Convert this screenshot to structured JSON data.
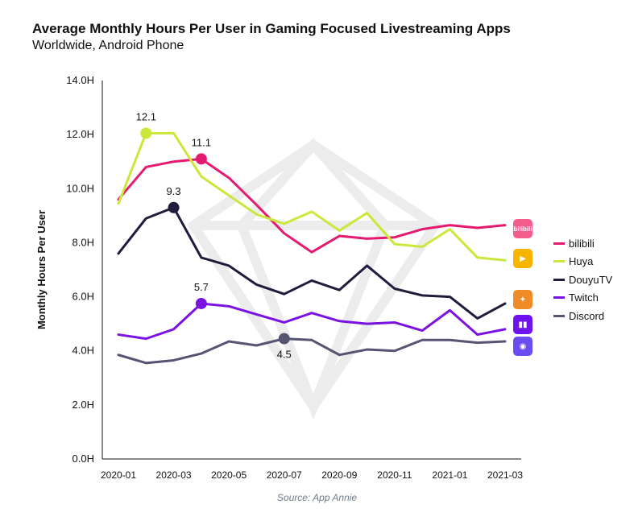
{
  "header": {
    "title": "Average Monthly Hours Per User in Gaming Focused Livestreaming Apps",
    "subtitle": "Worldwide, Android Phone"
  },
  "source": "Source: App Annie",
  "icons": {
    "bilibili": {
      "name": "bilibili-logo-icon",
      "color": "#f25d8e",
      "text": "bilibili"
    },
    "huya": {
      "name": "huya-logo-icon",
      "color": "#f7b500",
      "text": "▶"
    },
    "douyu": {
      "name": "douyu-logo-icon",
      "color": "#f08a25",
      "text": "✦"
    },
    "twitch": {
      "name": "twitch-logo-icon",
      "color": "#6f12f0",
      "text": "▮▮"
    },
    "discord": {
      "name": "discord-logo-icon",
      "color": "#6b4cf0",
      "text": "◉"
    }
  },
  "chart_data": {
    "type": "line",
    "title": "Average Monthly Hours Per User in Gaming Focused Livestreaming Apps",
    "subtitle": "Worldwide, Android Phone",
    "xlabel": "",
    "ylabel": "Monthly Hours Per User",
    "ylim": [
      0,
      14
    ],
    "yticks": [
      0,
      2,
      4,
      6,
      8,
      10,
      12,
      14
    ],
    "ytick_labels": [
      "0.0H",
      "2.0H",
      "4.0H",
      "6.0H",
      "8.0H",
      "10.0H",
      "12.0H",
      "14.0H"
    ],
    "x": [
      "2020-01",
      "2020-02",
      "2020-03",
      "2020-04",
      "2020-05",
      "2020-06",
      "2020-07",
      "2020-08",
      "2020-09",
      "2020-10",
      "2020-11",
      "2020-12",
      "2021-01",
      "2021-02",
      "2021-03"
    ],
    "xtick_labels": [
      "2020-01",
      "2020-03",
      "2020-05",
      "2020-07",
      "2020-09",
      "2020-11",
      "2021-01",
      "2021-03"
    ],
    "grid": false,
    "legend_position": "right",
    "series": [
      {
        "name": "bilibili",
        "color": "#e5196f",
        "values": [
          9.6,
          10.8,
          11.0,
          11.1,
          10.4,
          9.4,
          8.35,
          7.65,
          8.25,
          8.15,
          8.2,
          8.5,
          8.65,
          8.55,
          8.65
        ]
      },
      {
        "name": "Huya",
        "color": "#c9e83a",
        "values": [
          9.45,
          12.05,
          12.05,
          10.45,
          9.75,
          9.05,
          8.7,
          9.15,
          8.45,
          9.1,
          7.95,
          7.85,
          8.5,
          7.45,
          7.35
        ]
      },
      {
        "name": "DouyuTV",
        "color": "#1f1c3d",
        "values": [
          7.6,
          8.9,
          9.3,
          7.45,
          7.15,
          6.45,
          6.1,
          6.6,
          6.25,
          7.15,
          6.3,
          6.05,
          6.0,
          5.2,
          5.75
        ]
      },
      {
        "name": "Twitch",
        "color": "#7a12e2",
        "values": [
          4.6,
          4.45,
          4.8,
          5.75,
          5.65,
          5.35,
          5.05,
          5.4,
          5.1,
          5.0,
          5.05,
          4.75,
          5.5,
          4.6,
          4.8
        ]
      },
      {
        "name": "Discord",
        "color": "#555473",
        "values": [
          3.85,
          3.55,
          3.65,
          3.9,
          4.35,
          4.2,
          4.45,
          4.4,
          3.85,
          4.05,
          4.0,
          4.4,
          4.4,
          4.3,
          4.35
        ]
      }
    ],
    "annotations": [
      {
        "series": "Huya",
        "x": "2020-02",
        "value": 12.1,
        "label": "12.1",
        "position": "above"
      },
      {
        "series": "bilibili",
        "x": "2020-04",
        "value": 11.1,
        "label": "11.1",
        "position": "above"
      },
      {
        "series": "DouyuTV",
        "x": "2020-03",
        "value": 9.3,
        "label": "9.3",
        "position": "above"
      },
      {
        "series": "Twitch",
        "x": "2020-04",
        "value": 5.7,
        "label": "5.7",
        "position": "above"
      },
      {
        "series": "Discord",
        "x": "2020-07",
        "value": 4.5,
        "label": "4.5",
        "position": "below"
      }
    ]
  }
}
